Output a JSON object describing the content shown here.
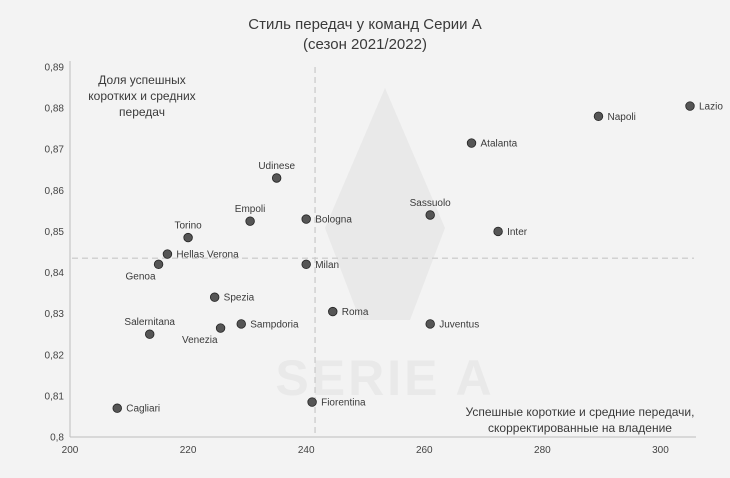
{
  "chart_data": {
    "type": "scatter",
    "title": "Стиль передач у команд Серии А",
    "subtitle": "(сезон 2021/2022)",
    "ylabel": "Доля успешных коротких и средних передач",
    "ylabel_lines": [
      "Доля успешных",
      "коротких и средних",
      "передач"
    ],
    "xlabel": "Успешные короткие и средние передачи, скорректированные на владение",
    "xlabel_lines": [
      "Успешные короткие и средние передачи,",
      "скорректированные на владение"
    ],
    "xlim": [
      200,
      305
    ],
    "ylim": [
      0.8,
      0.89
    ],
    "x_ticks": [
      "200",
      "220",
      "240",
      "260",
      "280",
      "300"
    ],
    "y_ticks": [
      "0,8",
      "0,81",
      "0,82",
      "0,83",
      "0,84",
      "0,85",
      "0,86",
      "0,87",
      "0,88",
      "0,89"
    ],
    "reference_lines": {
      "x": 241.5,
      "y": 0.8435
    },
    "watermark": "SERIE A",
    "points": [
      {
        "label": "Lazio",
        "x": 305,
        "y": 0.8805,
        "label_pos": "right"
      },
      {
        "label": "Napoli",
        "x": 289.5,
        "y": 0.878,
        "label_pos": "right"
      },
      {
        "label": "Atalanta",
        "x": 268,
        "y": 0.8715,
        "label_pos": "right"
      },
      {
        "label": "Udinese",
        "x": 235,
        "y": 0.863,
        "label_pos": "above"
      },
      {
        "label": "Sassuolo",
        "x": 261,
        "y": 0.854,
        "label_pos": "above"
      },
      {
        "label": "Empoli",
        "x": 230.5,
        "y": 0.8525,
        "label_pos": "above"
      },
      {
        "label": "Bologna",
        "x": 240,
        "y": 0.853,
        "label_pos": "right"
      },
      {
        "label": "Torino",
        "x": 220,
        "y": 0.8485,
        "label_pos": "above"
      },
      {
        "label": "Inter",
        "x": 272.5,
        "y": 0.85,
        "label_pos": "right"
      },
      {
        "label": "Hellas Verona",
        "x": 216.5,
        "y": 0.8445,
        "label_pos": "right"
      },
      {
        "label": "Genoa",
        "x": 215,
        "y": 0.842,
        "label_pos": "left-below"
      },
      {
        "label": "Milan",
        "x": 240,
        "y": 0.842,
        "label_pos": "right"
      },
      {
        "label": "Spezia",
        "x": 224.5,
        "y": 0.834,
        "label_pos": "right"
      },
      {
        "label": "Roma",
        "x": 244.5,
        "y": 0.8305,
        "label_pos": "right"
      },
      {
        "label": "Sampdoria",
        "x": 229,
        "y": 0.8275,
        "label_pos": "right"
      },
      {
        "label": "Venezia",
        "x": 225.5,
        "y": 0.8265,
        "label_pos": "left-below"
      },
      {
        "label": "Juventus",
        "x": 261,
        "y": 0.8275,
        "label_pos": "right"
      },
      {
        "label": "Salernitana",
        "x": 213.5,
        "y": 0.825,
        "label_pos": "above"
      },
      {
        "label": "Fiorentina",
        "x": 241,
        "y": 0.8085,
        "label_pos": "right"
      },
      {
        "label": "Cagliari",
        "x": 208,
        "y": 0.807,
        "label_pos": "right"
      }
    ],
    "colors": {
      "point_fill": "#555555",
      "point_stroke": "#222222",
      "text": "#3a3a3a",
      "reference_line": "#c8c8c8",
      "watermark": "#e9e9e9"
    }
  }
}
